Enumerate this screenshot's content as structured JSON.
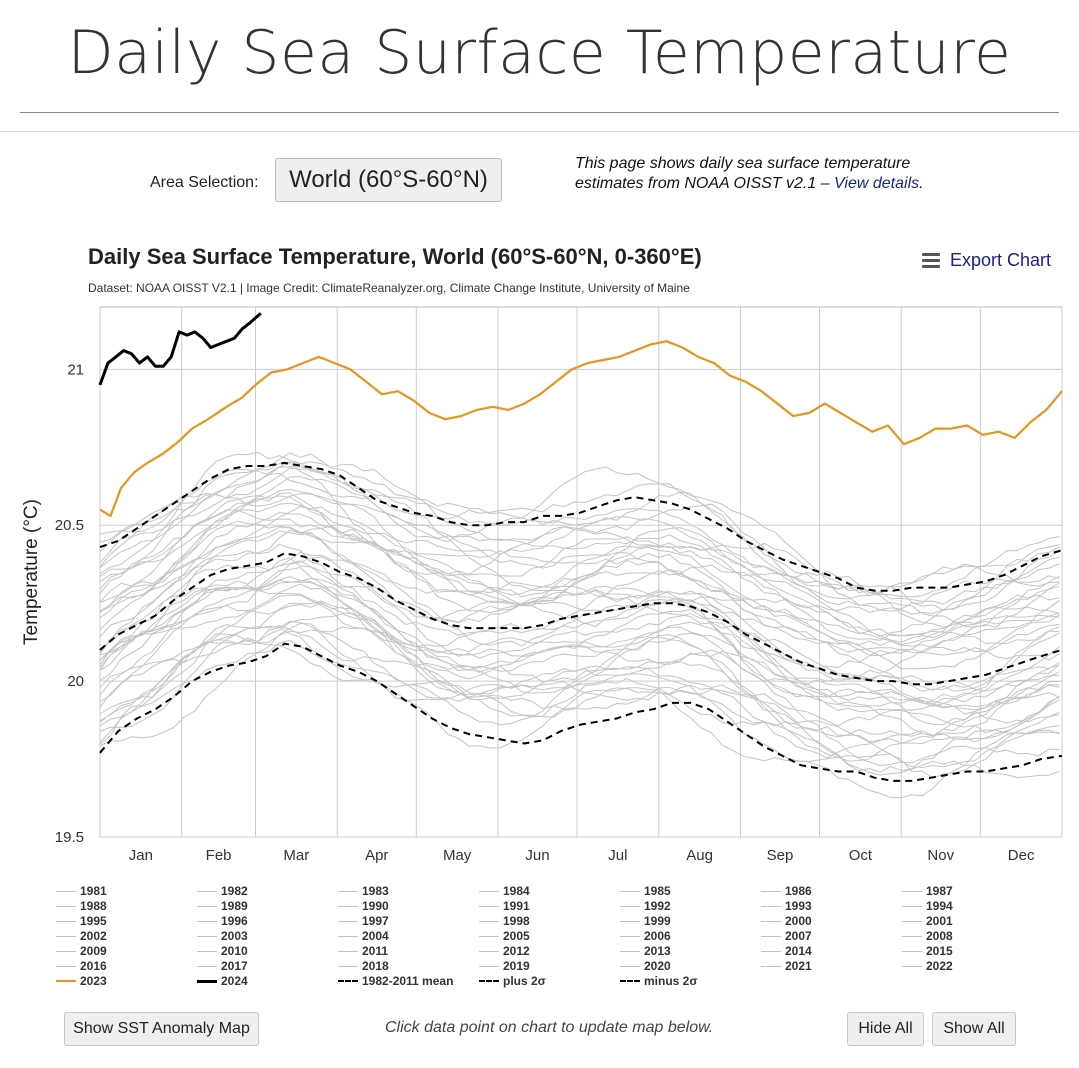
{
  "page": {
    "title": "Daily Sea Surface Temperature",
    "area_label": "Area Selection:",
    "area_value": "World (60°S-60°N)",
    "intro_text": "This page shows daily sea surface temperature estimates from NOAA OISST v2.1 – ",
    "intro_link": "View details",
    "intro_end": ".",
    "export_label": "Export Chart",
    "show_map_button": "Show SST Anomaly Map",
    "hint": "Click data point on chart to update map below.",
    "hide_all_button": "Hide All",
    "show_all_button": "Show All"
  },
  "chart_data": {
    "type": "line",
    "title": "Daily Sea Surface Temperature, World (60°S-60°N, 0-360°E)",
    "subtitle": "Dataset: NOAA OISST V2.1 | Image Credit: ClimateReanalyzer.org, Climate Change Institute, University of Maine",
    "xlabel": "",
    "ylabel": "Temperature (°C)",
    "x_domain": [
      1,
      366
    ],
    "ylim": [
      19.5,
      21.2
    ],
    "yticks": [
      19.5,
      20,
      20.5,
      21
    ],
    "ytick_labels": [
      "19.5",
      "20",
      "20.5",
      "21"
    ],
    "month_starts": [
      1,
      32,
      60,
      91,
      121,
      152,
      182,
      213,
      244,
      274,
      305,
      335,
      366
    ],
    "month_labels": [
      "Jan",
      "Feb",
      "Mar",
      "Apr",
      "May",
      "Jun",
      "Jul",
      "Aug",
      "Sep",
      "Oct",
      "Nov",
      "Dec"
    ],
    "grid": true,
    "legend_position": "bottom",
    "colors": {
      "year": "#c4c4c4",
      "y2023": "#e8941e",
      "y2024": "#000000",
      "stat": "#000000",
      "grid": "#cccccc",
      "axis": "#bbbbbb"
    },
    "legend": [
      "1981",
      "1982",
      "1983",
      "1984",
      "1985",
      "1986",
      "1987",
      "1988",
      "1989",
      "1990",
      "1991",
      "1992",
      "1993",
      "1994",
      "1995",
      "1996",
      "1997",
      "1998",
      "1999",
      "2000",
      "2001",
      "2002",
      "2003",
      "2004",
      "2005",
      "2006",
      "2007",
      "2008",
      "2009",
      "2010",
      "2011",
      "2012",
      "2013",
      "2014",
      "2015",
      "2016",
      "2017",
      "2018",
      "2019",
      "2020",
      "2021",
      "2022",
      "2023",
      "2024",
      "1982-2011 mean",
      "plus 2σ",
      "minus 2σ"
    ],
    "highlight_series": [
      {
        "name": "2023",
        "style": "y2023",
        "width": 2.2,
        "dash": "",
        "points": [
          [
            1,
            20.55
          ],
          [
            5,
            20.53
          ],
          [
            9,
            20.62
          ],
          [
            14,
            20.67
          ],
          [
            19,
            20.7
          ],
          [
            25,
            20.73
          ],
          [
            31,
            20.77
          ],
          [
            36,
            20.81
          ],
          [
            42,
            20.84
          ],
          [
            49,
            20.88
          ],
          [
            55,
            20.91
          ],
          [
            60,
            20.95
          ],
          [
            66,
            20.99
          ],
          [
            72,
            21.0
          ],
          [
            78,
            21.02
          ],
          [
            84,
            21.04
          ],
          [
            90,
            21.02
          ],
          [
            96,
            21.0
          ],
          [
            102,
            20.96
          ],
          [
            108,
            20.92
          ],
          [
            114,
            20.93
          ],
          [
            120,
            20.9
          ],
          [
            126,
            20.86
          ],
          [
            132,
            20.84
          ],
          [
            138,
            20.85
          ],
          [
            144,
            20.87
          ],
          [
            150,
            20.88
          ],
          [
            156,
            20.87
          ],
          [
            162,
            20.89
          ],
          [
            168,
            20.92
          ],
          [
            174,
            20.96
          ],
          [
            180,
            21.0
          ],
          [
            186,
            21.02
          ],
          [
            192,
            21.03
          ],
          [
            198,
            21.04
          ],
          [
            204,
            21.06
          ],
          [
            210,
            21.08
          ],
          [
            216,
            21.09
          ],
          [
            222,
            21.07
          ],
          [
            228,
            21.04
          ],
          [
            234,
            21.02
          ],
          [
            240,
            20.98
          ],
          [
            246,
            20.96
          ],
          [
            252,
            20.93
          ],
          [
            258,
            20.89
          ],
          [
            264,
            20.85
          ],
          [
            270,
            20.86
          ],
          [
            276,
            20.89
          ],
          [
            282,
            20.86
          ],
          [
            288,
            20.83
          ],
          [
            294,
            20.8
          ],
          [
            300,
            20.82
          ],
          [
            306,
            20.76
          ],
          [
            312,
            20.78
          ],
          [
            318,
            20.81
          ],
          [
            324,
            20.81
          ],
          [
            330,
            20.82
          ],
          [
            336,
            20.79
          ],
          [
            342,
            20.8
          ],
          [
            348,
            20.78
          ],
          [
            354,
            20.83
          ],
          [
            360,
            20.87
          ],
          [
            366,
            20.93
          ]
        ]
      },
      {
        "name": "2024",
        "style": "y2024",
        "width": 3,
        "dash": "",
        "points": [
          [
            1,
            20.95
          ],
          [
            4,
            21.02
          ],
          [
            7,
            21.04
          ],
          [
            10,
            21.06
          ],
          [
            13,
            21.05
          ],
          [
            16,
            21.02
          ],
          [
            19,
            21.04
          ],
          [
            22,
            21.01
          ],
          [
            25,
            21.01
          ],
          [
            28,
            21.04
          ],
          [
            31,
            21.12
          ],
          [
            34,
            21.11
          ],
          [
            37,
            21.12
          ],
          [
            40,
            21.1
          ],
          [
            43,
            21.07
          ],
          [
            46,
            21.08
          ],
          [
            49,
            21.09
          ],
          [
            52,
            21.1
          ],
          [
            55,
            21.13
          ],
          [
            58,
            21.15
          ],
          [
            62,
            21.18
          ]
        ]
      },
      {
        "name": "1982-2011 mean",
        "style": "stat",
        "width": 2,
        "dash": "7,5",
        "points": [
          [
            1,
            20.1
          ],
          [
            8,
            20.15
          ],
          [
            15,
            20.18
          ],
          [
            22,
            20.21
          ],
          [
            29,
            20.26
          ],
          [
            36,
            20.3
          ],
          [
            43,
            20.34
          ],
          [
            50,
            20.36
          ],
          [
            57,
            20.37
          ],
          [
            64,
            20.38
          ],
          [
            71,
            20.41
          ],
          [
            78,
            20.4
          ],
          [
            85,
            20.38
          ],
          [
            92,
            20.35
          ],
          [
            99,
            20.33
          ],
          [
            106,
            20.3
          ],
          [
            113,
            20.26
          ],
          [
            120,
            20.23
          ],
          [
            127,
            20.2
          ],
          [
            134,
            20.18
          ],
          [
            141,
            20.17
          ],
          [
            148,
            20.17
          ],
          [
            155,
            20.17
          ],
          [
            162,
            20.17
          ],
          [
            169,
            20.18
          ],
          [
            176,
            20.2
          ],
          [
            183,
            20.21
          ],
          [
            190,
            20.22
          ],
          [
            197,
            20.23
          ],
          [
            204,
            20.24
          ],
          [
            211,
            20.25
          ],
          [
            218,
            20.25
          ],
          [
            225,
            20.24
          ],
          [
            232,
            20.22
          ],
          [
            239,
            20.19
          ],
          [
            246,
            20.15
          ],
          [
            253,
            20.12
          ],
          [
            260,
            20.09
          ],
          [
            267,
            20.06
          ],
          [
            274,
            20.04
          ],
          [
            281,
            20.02
          ],
          [
            288,
            20.01
          ],
          [
            295,
            20.0
          ],
          [
            302,
            20.0
          ],
          [
            309,
            19.99
          ],
          [
            316,
            19.99
          ],
          [
            323,
            20.0
          ],
          [
            330,
            20.01
          ],
          [
            337,
            20.02
          ],
          [
            344,
            20.04
          ],
          [
            351,
            20.06
          ],
          [
            358,
            20.08
          ],
          [
            366,
            20.1
          ]
        ]
      },
      {
        "name": "plus 2σ",
        "style": "stat",
        "width": 2,
        "dash": "7,5",
        "points": [
          [
            1,
            20.43
          ],
          [
            8,
            20.45
          ],
          [
            15,
            20.49
          ],
          [
            22,
            20.53
          ],
          [
            29,
            20.57
          ],
          [
            36,
            20.61
          ],
          [
            43,
            20.65
          ],
          [
            50,
            20.68
          ],
          [
            57,
            20.69
          ],
          [
            64,
            20.69
          ],
          [
            71,
            20.7
          ],
          [
            78,
            20.69
          ],
          [
            85,
            20.68
          ],
          [
            92,
            20.66
          ],
          [
            99,
            20.62
          ],
          [
            106,
            20.58
          ],
          [
            113,
            20.56
          ],
          [
            120,
            20.54
          ],
          [
            127,
            20.53
          ],
          [
            134,
            20.51
          ],
          [
            141,
            20.5
          ],
          [
            148,
            20.5
          ],
          [
            155,
            20.51
          ],
          [
            162,
            20.51
          ],
          [
            169,
            20.53
          ],
          [
            176,
            20.53
          ],
          [
            183,
            20.54
          ],
          [
            190,
            20.56
          ],
          [
            197,
            20.58
          ],
          [
            204,
            20.59
          ],
          [
            211,
            20.58
          ],
          [
            218,
            20.57
          ],
          [
            225,
            20.55
          ],
          [
            232,
            20.52
          ],
          [
            239,
            20.49
          ],
          [
            246,
            20.45
          ],
          [
            253,
            20.42
          ],
          [
            260,
            20.39
          ],
          [
            267,
            20.37
          ],
          [
            274,
            20.35
          ],
          [
            281,
            20.33
          ],
          [
            288,
            20.3
          ],
          [
            295,
            20.29
          ],
          [
            302,
            20.29
          ],
          [
            309,
            20.3
          ],
          [
            316,
            20.3
          ],
          [
            323,
            20.3
          ],
          [
            330,
            20.31
          ],
          [
            337,
            20.32
          ],
          [
            344,
            20.34
          ],
          [
            351,
            20.37
          ],
          [
            358,
            20.4
          ],
          [
            366,
            20.42
          ]
        ]
      },
      {
        "name": "minus 2σ",
        "style": "stat",
        "width": 2,
        "dash": "7,5",
        "points": [
          [
            1,
            19.77
          ],
          [
            8,
            19.84
          ],
          [
            15,
            19.88
          ],
          [
            22,
            19.91
          ],
          [
            29,
            19.95
          ],
          [
            36,
            20.0
          ],
          [
            43,
            20.03
          ],
          [
            50,
            20.05
          ],
          [
            57,
            20.06
          ],
          [
            64,
            20.08
          ],
          [
            71,
            20.12
          ],
          [
            78,
            20.11
          ],
          [
            85,
            20.08
          ],
          [
            92,
            20.05
          ],
          [
            99,
            20.03
          ],
          [
            106,
            20.0
          ],
          [
            113,
            19.96
          ],
          [
            120,
            19.92
          ],
          [
            127,
            19.88
          ],
          [
            134,
            19.85
          ],
          [
            141,
            19.83
          ],
          [
            148,
            19.82
          ],
          [
            155,
            19.81
          ],
          [
            162,
            19.8
          ],
          [
            169,
            19.81
          ],
          [
            176,
            19.84
          ],
          [
            183,
            19.86
          ],
          [
            190,
            19.87
          ],
          [
            197,
            19.88
          ],
          [
            204,
            19.9
          ],
          [
            211,
            19.91
          ],
          [
            218,
            19.93
          ],
          [
            225,
            19.93
          ],
          [
            232,
            19.91
          ],
          [
            239,
            19.87
          ],
          [
            246,
            19.83
          ],
          [
            253,
            19.79
          ],
          [
            260,
            19.76
          ],
          [
            267,
            19.73
          ],
          [
            274,
            19.72
          ],
          [
            281,
            19.71
          ],
          [
            288,
            19.71
          ],
          [
            295,
            19.69
          ],
          [
            302,
            19.68
          ],
          [
            309,
            19.68
          ],
          [
            316,
            19.69
          ],
          [
            323,
            19.7
          ],
          [
            330,
            19.71
          ],
          [
            337,
            19.71
          ],
          [
            344,
            19.72
          ],
          [
            351,
            19.73
          ],
          [
            358,
            19.75
          ],
          [
            366,
            19.76
          ]
        ]
      }
    ]
  }
}
